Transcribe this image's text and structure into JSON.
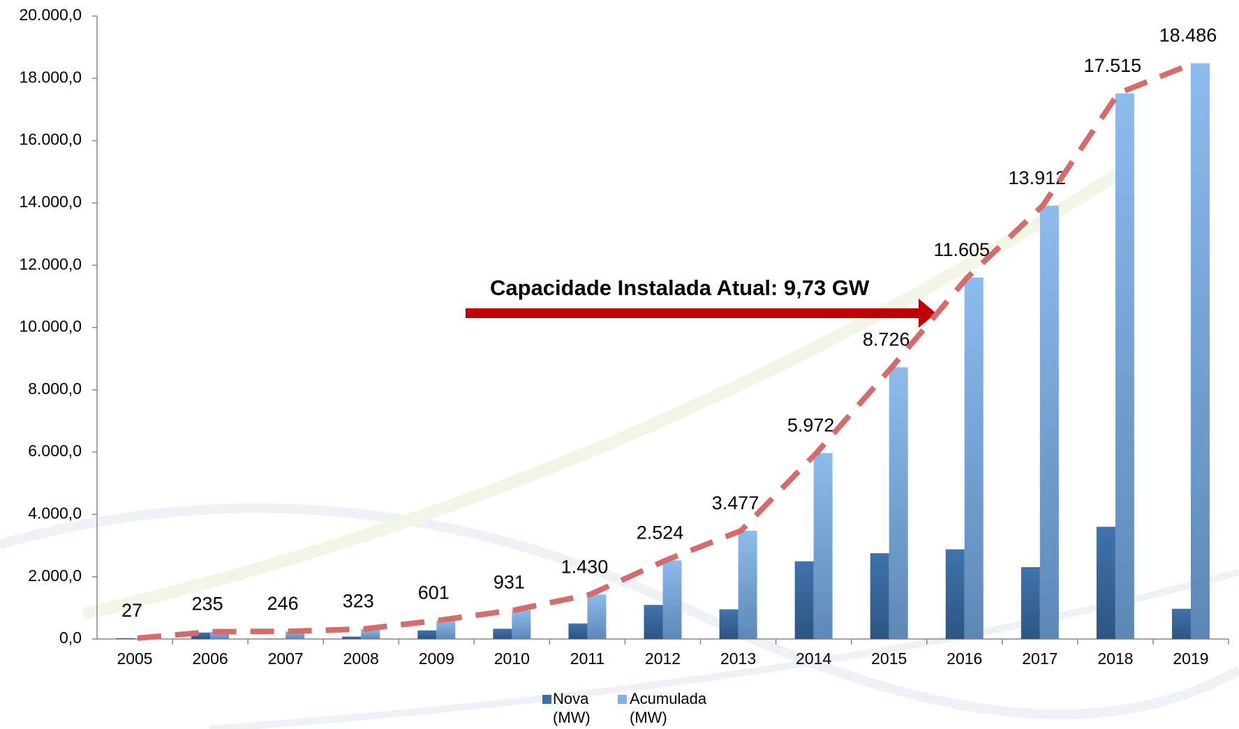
{
  "chart_data": {
    "type": "bar",
    "categories": [
      "2005",
      "2006",
      "2007",
      "2008",
      "2009",
      "2010",
      "2011",
      "2012",
      "2013",
      "2014",
      "2015",
      "2016",
      "2017",
      "2018",
      "2019"
    ],
    "series": [
      {
        "name": "Nova (MW)",
        "color": "#3d6ea6",
        "values": [
          27,
          208,
          11,
          77,
          278,
          330,
          499,
          1094,
          953,
          2495,
          2754,
          2879,
          2307,
          3603,
          971
        ]
      },
      {
        "name": "Acumulada (MW)",
        "color": "#7fb1e6",
        "values": [
          27,
          235,
          246,
          323,
          601,
          931,
          1430,
          2524,
          3477,
          5972,
          8726,
          11605,
          13912,
          17515,
          18486
        ],
        "value_labels": [
          "27",
          "235",
          "246",
          "323",
          "601",
          "931",
          "1.430",
          "2.524",
          "3.477",
          "5.972",
          "8.726",
          "11.605",
          "13.912",
          "17.515",
          "18.486"
        ]
      }
    ],
    "annotation": "Capacidade Instalada Atual: 9,73 GW",
    "ylim": [
      0,
      20000
    ],
    "yticks": [
      {
        "value": 0,
        "label": "0,0"
      },
      {
        "value": 2000,
        "label": "2.000,0"
      },
      {
        "value": 4000,
        "label": "4.000,0"
      },
      {
        "value": 6000,
        "label": "6.000,0"
      },
      {
        "value": 8000,
        "label": "8.000,0"
      },
      {
        "value": 10000,
        "label": "10.000,0"
      },
      {
        "value": 12000,
        "label": "12.000,0"
      },
      {
        "value": 14000,
        "label": "14.000,0"
      },
      {
        "value": 16000,
        "label": "16.000,0"
      },
      {
        "value": 18000,
        "label": "18.000,0"
      },
      {
        "value": 20000,
        "label": "20.000,0"
      }
    ],
    "grid": false,
    "legend": "bottom"
  }
}
